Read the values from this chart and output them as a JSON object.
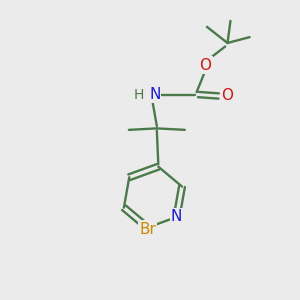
{
  "background_color": "#ebebeb",
  "bond_color": "#4a7a4a",
  "atom_colors": {
    "N": "#1a1acc",
    "O": "#cc1a1a",
    "Br": "#cc8800",
    "H": "#4a7a4a",
    "C": "#4a7a4a"
  },
  "figsize": [
    3.0,
    3.0
  ],
  "dpi": 100
}
